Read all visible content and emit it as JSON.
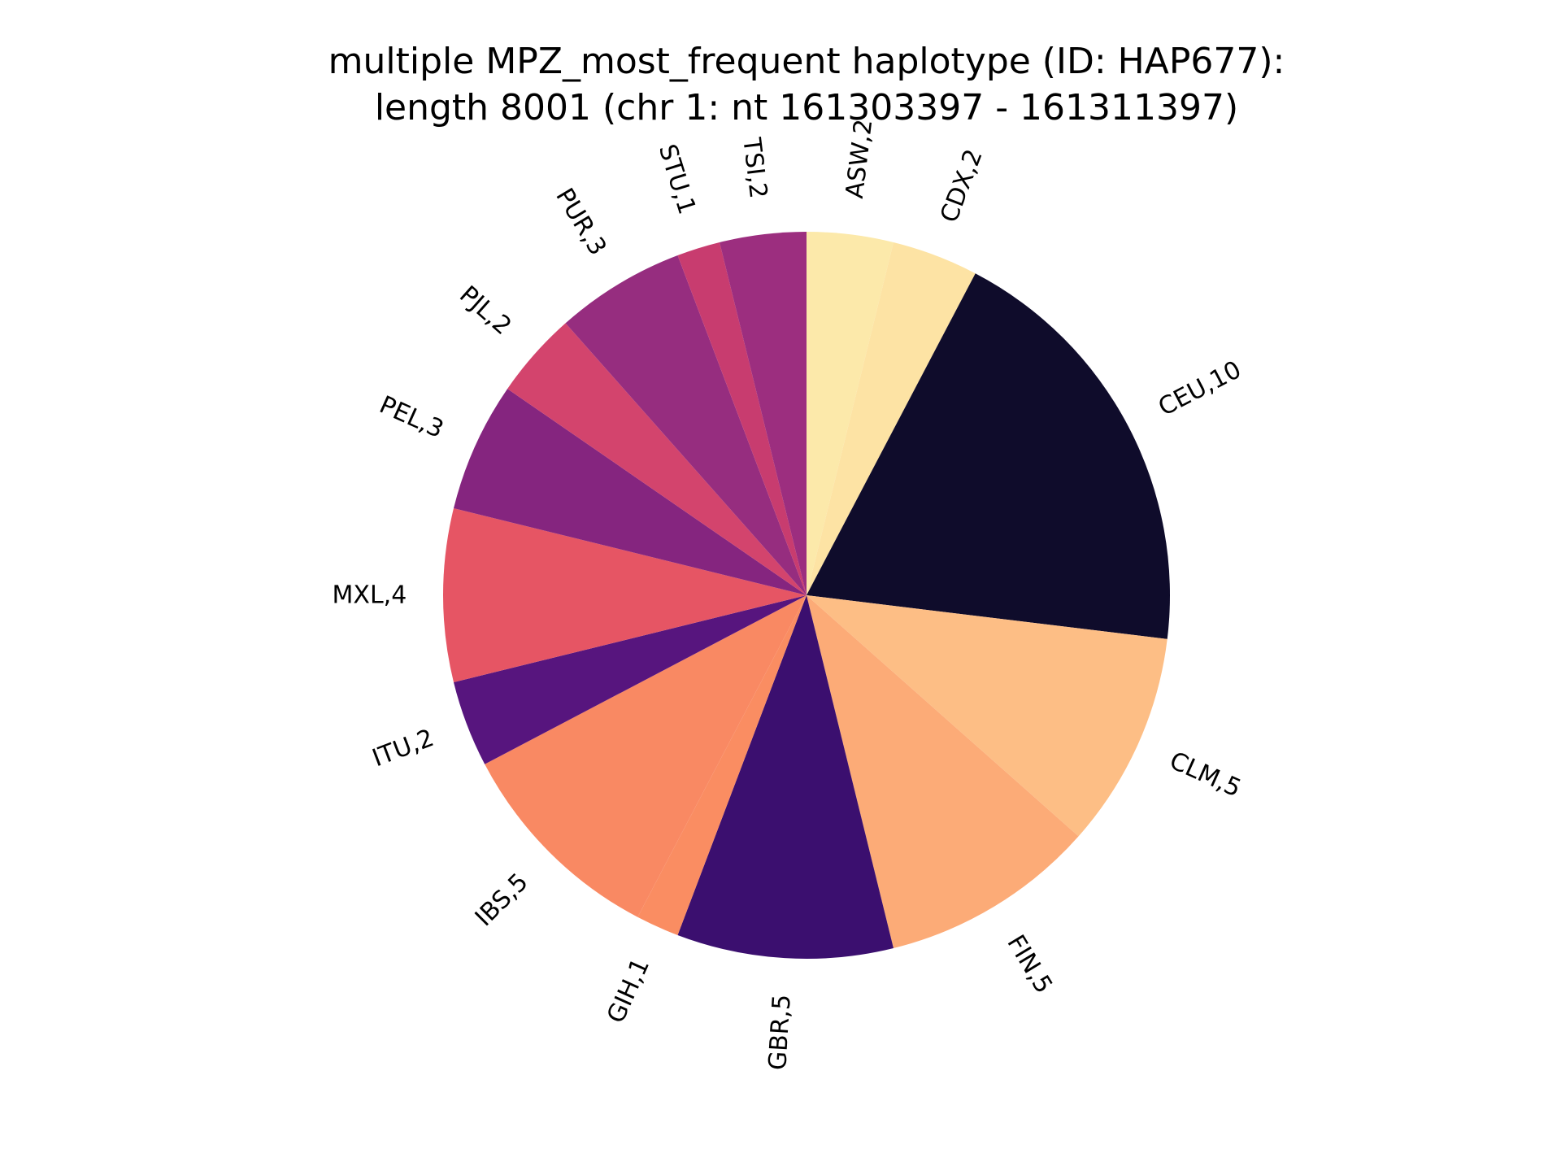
{
  "title": {
    "line1": "multiple MPZ_most_frequent haplotype (ID: HAP677):",
    "line2": "length 8001 (chr 1: nt 161303397 - 161311397)"
  },
  "chart_data": {
    "type": "pie",
    "title": "multiple MPZ_most_frequent haplotype (ID: HAP677):\nlength 8001 (chr 1: nt 161303397 - 161311397)",
    "start_angle_deg": 90,
    "direction": "clockwise",
    "slices": [
      {
        "name": "ASW",
        "value": 2,
        "label": "ASW,2",
        "color": "#fce9aa"
      },
      {
        "name": "CDX",
        "value": 2,
        "label": "CDX,2",
        "color": "#fde3a4"
      },
      {
        "name": "CEU",
        "value": 10,
        "label": "CEU,10",
        "color": "#0f0c2b"
      },
      {
        "name": "CLM",
        "value": 5,
        "label": "CLM,5",
        "color": "#fdbe85"
      },
      {
        "name": "FIN",
        "value": 5,
        "label": "FIN,5",
        "color": "#fcab77"
      },
      {
        "name": "GBR",
        "value": 5,
        "label": "GBR,5",
        "color": "#3b0f6f"
      },
      {
        "name": "GIH",
        "value": 1,
        "label": "GIH,1",
        "color": "#fa8d62"
      },
      {
        "name": "IBS",
        "value": 5,
        "label": "IBS,5",
        "color": "#f98963"
      },
      {
        "name": "ITU",
        "value": 2,
        "label": "ITU,2",
        "color": "#57157e"
      },
      {
        "name": "MXL",
        "value": 4,
        "label": "MXL,4",
        "color": "#e65564"
      },
      {
        "name": "PEL",
        "value": 3,
        "label": "PEL,3",
        "color": "#85257f"
      },
      {
        "name": "PJL",
        "value": 2,
        "label": "PJL,2",
        "color": "#d3446d"
      },
      {
        "name": "PUR",
        "value": 3,
        "label": "PUR,3",
        "color": "#962d7f"
      },
      {
        "name": "STU",
        "value": 1,
        "label": "STU,1",
        "color": "#c83c6f"
      },
      {
        "name": "TSI",
        "value": 2,
        "label": "TSI,2",
        "color": "#9c2e7f"
      }
    ]
  }
}
